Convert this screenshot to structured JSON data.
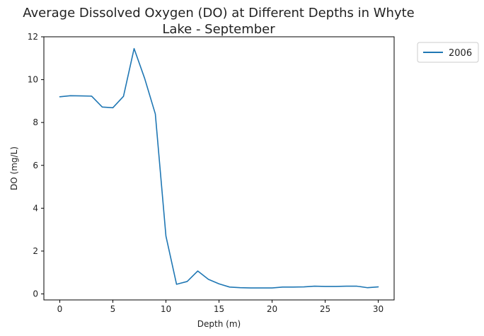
{
  "chart_data": {
    "type": "line",
    "title_line1": "Average Dissolved Oxygen (DO) at Different Depths in Whyte",
    "title_line2": "Lake - September",
    "xlabel": "Depth (m)",
    "ylabel": "DO (mg/L)",
    "xlim": [
      -1.5,
      31.5
    ],
    "ylim": [
      -0.28,
      12.0
    ],
    "xticks": [
      0,
      5,
      10,
      15,
      20,
      25,
      30
    ],
    "yticks": [
      0,
      2,
      4,
      6,
      8,
      10,
      12
    ],
    "grid": false,
    "legend_position": "outside-top-right",
    "series": [
      {
        "name": "2006",
        "color": "#1f77b4",
        "x": [
          0,
          1,
          2,
          3,
          4,
          5,
          6,
          7,
          8,
          9,
          10,
          11,
          12,
          13,
          14,
          15,
          16,
          17,
          18,
          19,
          20,
          21,
          22,
          23,
          24,
          25,
          26,
          27,
          28,
          29,
          30
        ],
        "y": [
          9.2,
          9.25,
          9.24,
          9.23,
          8.72,
          8.69,
          9.22,
          11.45,
          10.05,
          8.4,
          2.7,
          0.45,
          0.58,
          1.07,
          0.68,
          0.47,
          0.32,
          0.29,
          0.28,
          0.28,
          0.28,
          0.32,
          0.32,
          0.33,
          0.36,
          0.35,
          0.35,
          0.36,
          0.36,
          0.29,
          0.33
        ]
      }
    ]
  }
}
